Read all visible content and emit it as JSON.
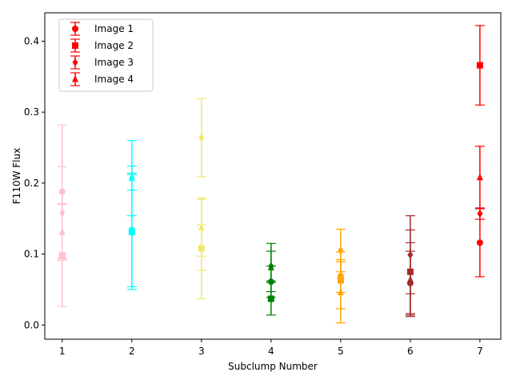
{
  "chart_data": {
    "type": "scatter",
    "xlabel": "Subclump Number",
    "ylabel": "F110W Flux",
    "xlim": [
      0.75,
      7.3
    ],
    "ylim": [
      -0.02,
      0.44
    ],
    "x_ticks": [
      1,
      2,
      3,
      4,
      5,
      6,
      7
    ],
    "y_ticks": [
      0.0,
      0.1,
      0.2,
      0.3,
      0.4
    ],
    "y_tick_labels": [
      "0.0",
      "0.1",
      "0.2",
      "0.3",
      "0.4"
    ],
    "grid": false,
    "legend_position": "top-left",
    "legend_color": "#ff0000",
    "series": [
      {
        "name": "Image 1",
        "marker": "circle",
        "points": [
          {
            "x": 1,
            "y": 0.188,
            "err": 0.094,
            "color": "#ffc0cb"
          },
          {
            "x": 2,
            "y": 0.134,
            "err": 0.08,
            "color": "#00ffff"
          },
          {
            "x": 3,
            "y": 0.109,
            "err": 0.032,
            "color": "#f0e86a"
          },
          {
            "x": 4,
            "y": 0.061,
            "err": 0.022,
            "color": "#008000"
          },
          {
            "x": 5,
            "y": 0.069,
            "err": 0.023,
            "color": "#ffa500"
          },
          {
            "x": 6,
            "y": 0.059,
            "err": 0.045,
            "color": "#a52a2a"
          },
          {
            "x": 7,
            "y": 0.116,
            "err": 0.048,
            "color": "#ff0000"
          }
        ]
      },
      {
        "name": "Image 2",
        "marker": "square",
        "points": [
          {
            "x": 1,
            "y": 0.098,
            "err": 0.072,
            "color": "#ffc0cb"
          },
          {
            "x": 2,
            "y": 0.131,
            "err": 0.081,
            "color": "#00ffff"
          },
          {
            "x": 3,
            "y": 0.108,
            "err": 0.071,
            "color": "#f0e86a"
          },
          {
            "x": 4,
            "y": 0.037,
            "err": 0.023,
            "color": "#008000"
          },
          {
            "x": 5,
            "y": 0.063,
            "err": 0.04,
            "color": "#ffa500"
          },
          {
            "x": 6,
            "y": 0.075,
            "err": 0.059,
            "color": "#a52a2a"
          },
          {
            "x": 7,
            "y": 0.366,
            "err": 0.056,
            "color": "#ff0000"
          }
        ]
      },
      {
        "name": "Image 3",
        "marker": "diamond",
        "points": [
          {
            "x": 1,
            "y": 0.158,
            "err": 0.065,
            "color": "#ffc0cb"
          },
          {
            "x": 2,
            "y": 0.207,
            "err": 0.053,
            "color": "#00ffff"
          },
          {
            "x": 3,
            "y": 0.264,
            "err": 0.055,
            "color": "#f0e86a"
          },
          {
            "x": 4,
            "y": 0.083,
            "err": 0.021,
            "color": "#008000"
          },
          {
            "x": 5,
            "y": 0.105,
            "err": 0.03,
            "color": "#ffa500"
          },
          {
            "x": 6,
            "y": 0.099,
            "err": 0.055,
            "color": "#a52a2a"
          },
          {
            "x": 7,
            "y": 0.157,
            "err": 0.008,
            "color": "#ff0000"
          }
        ]
      },
      {
        "name": "Image 4",
        "marker": "triangle",
        "points": [
          {
            "x": 1,
            "y": 0.131,
            "err": 0.04,
            "color": "#ffc0cb"
          },
          {
            "x": 2,
            "y": 0.207,
            "err": 0.017,
            "color": "#00ffff"
          },
          {
            "x": 3,
            "y": 0.137,
            "err": 0.04,
            "color": "#f0e86a"
          },
          {
            "x": 4,
            "y": 0.081,
            "err": 0.034,
            "color": "#008000"
          },
          {
            "x": 5,
            "y": 0.046,
            "err": 0.043,
            "color": "#ffa500"
          },
          {
            "x": 6,
            "y": 0.064,
            "err": 0.052,
            "color": "#a52a2a"
          },
          {
            "x": 7,
            "y": 0.208,
            "err": 0.044,
            "color": "#ff0000"
          }
        ]
      }
    ]
  }
}
